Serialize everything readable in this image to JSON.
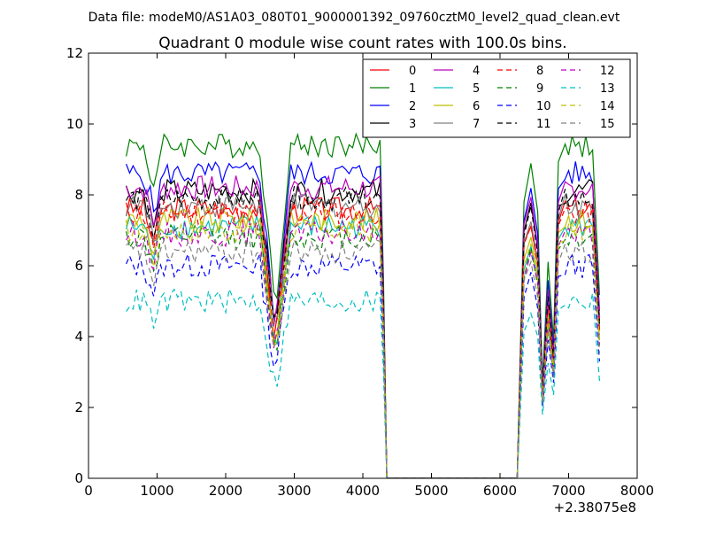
{
  "chart_data": {
    "type": "line",
    "suptitle": "Data file: modeM0/AS1A03_080T01_9000001392_09760cztM0_level2_quad_clean.evt",
    "title": "Quadrant 0 module wise count rates with 100.0s bins.",
    "xlabel": "",
    "ylabel": "",
    "x_offset_label": "+2.38075e8",
    "xlim": [
      0,
      8000
    ],
    "ylim": [
      0,
      12
    ],
    "xticks": [
      0,
      1000,
      2000,
      3000,
      4000,
      5000,
      6000,
      7000,
      8000
    ],
    "yticks": [
      0,
      2,
      4,
      6,
      8,
      10,
      12
    ],
    "grid": false,
    "legend_position": "top-right",
    "legend_columns": 4,
    "segments": [
      {
        "x_start": 550,
        "x_end": 4250
      },
      {
        "x_start": 4350,
        "x_end": 6250,
        "zero": true
      },
      {
        "x_start": 6350,
        "x_end": 7450
      }
    ],
    "series": [
      {
        "name": "0",
        "color": "#ff0000",
        "dash": "solid",
        "level": 7.6
      },
      {
        "name": "1",
        "color": "#008000",
        "dash": "solid",
        "level": 9.4
      },
      {
        "name": "2",
        "color": "#0000ff",
        "dash": "solid",
        "level": 8.6
      },
      {
        "name": "3",
        "color": "#000000",
        "dash": "solid",
        "level": 8.1
      },
      {
        "name": "4",
        "color": "#bf00bf",
        "dash": "solid",
        "level": 8.2
      },
      {
        "name": "5",
        "color": "#00bfbf",
        "dash": "solid",
        "level": 7.1
      },
      {
        "name": "6",
        "color": "#bfbf00",
        "dash": "solid",
        "level": 7.3
      },
      {
        "name": "7",
        "color": "#808080",
        "dash": "solid",
        "level": 7.7
      },
      {
        "name": "8",
        "color": "#ff0000",
        "dash": "dashed",
        "level": 7.5
      },
      {
        "name": "9",
        "color": "#008000",
        "dash": "dashed",
        "level": 6.8
      },
      {
        "name": "10",
        "color": "#0000ff",
        "dash": "dashed",
        "level": 6.0
      },
      {
        "name": "11",
        "color": "#000000",
        "dash": "dashed",
        "level": 7.9
      },
      {
        "name": "12",
        "color": "#bf00bf",
        "dash": "dashed",
        "level": 6.9
      },
      {
        "name": "13",
        "color": "#00bfbf",
        "dash": "dashed",
        "level": 5.0
      },
      {
        "name": "14",
        "color": "#bfbf00",
        "dash": "dashed",
        "level": 7.0
      },
      {
        "name": "15",
        "color": "#808080",
        "dash": "dashed",
        "level": 6.4
      }
    ]
  }
}
